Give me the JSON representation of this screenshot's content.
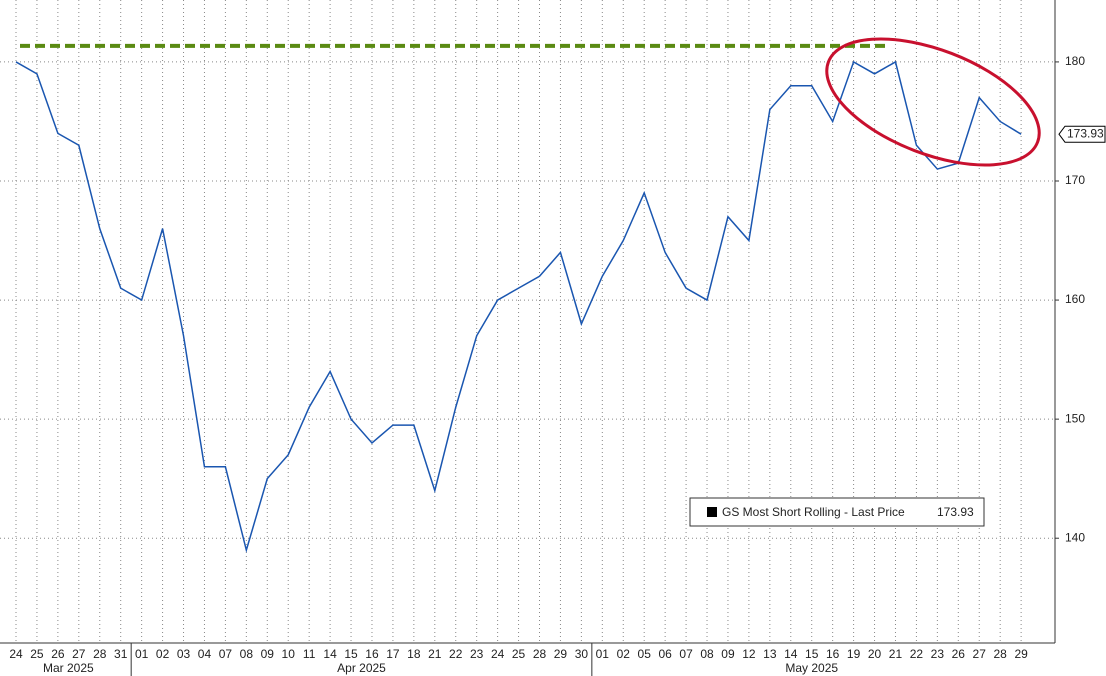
{
  "chart_data": {
    "type": "line",
    "categories": [
      "24",
      "25",
      "26",
      "27",
      "28",
      "31",
      "01",
      "02",
      "03",
      "04",
      "07",
      "08",
      "09",
      "10",
      "11",
      "14",
      "15",
      "16",
      "17",
      "18",
      "21",
      "22",
      "23",
      "24",
      "25",
      "28",
      "29",
      "30",
      "01",
      "02",
      "05",
      "06",
      "07",
      "08",
      "09",
      "12",
      "13",
      "14",
      "15",
      "16",
      "19",
      "20",
      "21",
      "22",
      "23",
      "26",
      "27",
      "28",
      "29"
    ],
    "months": [
      "Mar 2025",
      "Apr 2025",
      "May 2025"
    ],
    "series": [
      {
        "name": "GS Most Short Rolling - Last Price",
        "color": "#1a56b0",
        "values": [
          180,
          179,
          174,
          173,
          166,
          161,
          160,
          166,
          157,
          146,
          146,
          139,
          145,
          147,
          151,
          154,
          150,
          148,
          149.5,
          149.5,
          144,
          151,
          157,
          160,
          161,
          162,
          164,
          158,
          162,
          165,
          169,
          164,
          161,
          160,
          167,
          165,
          176,
          178,
          178,
          175,
          180,
          179,
          180,
          173,
          171,
          171.5,
          177,
          175,
          173.93
        ]
      }
    ],
    "last_price": 173.93,
    "reference_level": 181.35,
    "ylim": [
      131.2,
      185.2
    ],
    "yticks": [
      140,
      150,
      160,
      170,
      180
    ],
    "grid": true
  }
}
